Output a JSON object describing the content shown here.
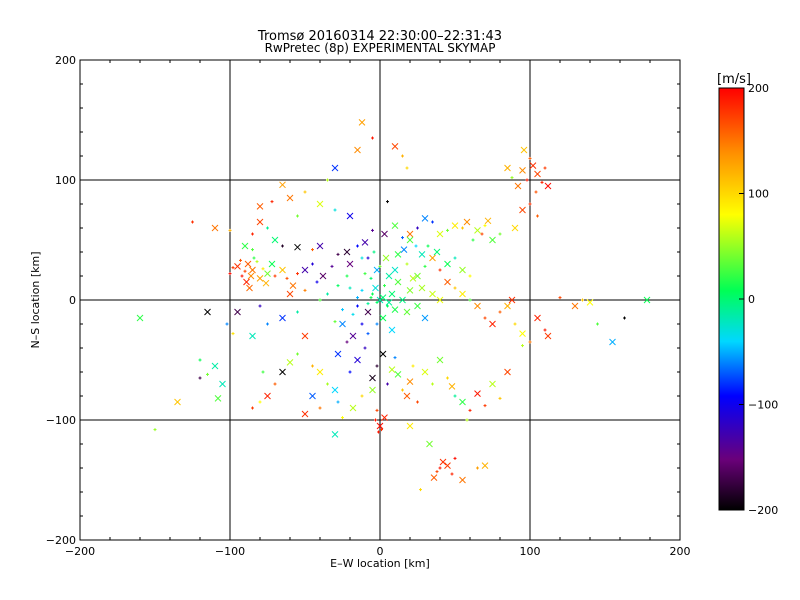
{
  "chart_data": {
    "type": "scatter",
    "title": "Tromsø 20160314 22:30:00–22:31:43",
    "subtitle": "RwPretec (8p) EXPERIMENTAL SKYMAP",
    "xlabel": "E–W location [km]",
    "ylabel": "N–S location [km]",
    "xlim": [
      -200,
      200
    ],
    "ylim": [
      -200,
      200
    ],
    "xticks": [
      -200,
      -100,
      0,
      100,
      200
    ],
    "yticks": [
      -200,
      -100,
      0,
      100,
      200
    ],
    "grid": "lines at ±100 km and 0 on both axes",
    "colorbar": {
      "label": "[m/s]",
      "range": [
        -200,
        200
      ],
      "ticks": [
        200,
        100,
        0,
        -100,
        -200
      ],
      "colormap": [
        "#000000",
        "#6a007a",
        "#0000ff",
        "#00d8ff",
        "#00ff55",
        "#ffff00",
        "#ff8c00",
        "#ff0000"
      ]
    },
    "points": [
      [
        -95,
        28,
        180
      ],
      [
        -90,
        24,
        170
      ],
      [
        -88,
        30,
        160
      ],
      [
        -92,
        20,
        190
      ],
      [
        -85,
        25,
        150
      ],
      [
        -82,
        32,
        60
      ],
      [
        -86,
        20,
        140
      ],
      [
        -98,
        27,
        175
      ],
      [
        -80,
        18,
        130
      ],
      [
        -78,
        26,
        90
      ],
      [
        -75,
        22,
        40
      ],
      [
        -84,
        35,
        20
      ],
      [
        -89,
        15,
        185
      ],
      [
        -93,
        33,
        165
      ],
      [
        -87,
        10,
        155
      ],
      [
        -100,
        22,
        195
      ],
      [
        -72,
        30,
        10
      ],
      [
        -70,
        20,
        175
      ],
      [
        -76,
        14,
        120
      ],
      [
        -62,
        18,
        165
      ],
      [
        -58,
        12,
        150
      ],
      [
        -55,
        22,
        180
      ],
      [
        -65,
        25,
        110
      ],
      [
        -50,
        8,
        145
      ],
      [
        -60,
        5,
        170
      ],
      [
        -85,
        55,
        185
      ],
      [
        -80,
        65,
        170
      ],
      [
        -75,
        60,
        -10
      ],
      [
        -90,
        45,
        20
      ],
      [
        -85,
        42,
        30
      ],
      [
        -70,
        50,
        0
      ],
      [
        -65,
        45,
        -185
      ],
      [
        -55,
        44,
        -200
      ],
      [
        -45,
        42,
        160
      ],
      [
        -40,
        45,
        -130
      ],
      [
        -80,
        -5,
        -120
      ],
      [
        -95,
        -10,
        -170
      ],
      [
        -102,
        -20,
        -60
      ],
      [
        -115,
        -10,
        -200
      ],
      [
        -98,
        -28,
        95
      ],
      [
        -85,
        -30,
        -20
      ],
      [
        -75,
        -20,
        -60
      ],
      [
        -65,
        -15,
        -80
      ],
      [
        -55,
        -10,
        -15
      ],
      [
        -50,
        -30,
        175
      ],
      [
        -55,
        -45,
        40
      ],
      [
        -60,
        -52,
        60
      ],
      [
        -45,
        -55,
        120
      ],
      [
        -40,
        -60,
        90
      ],
      [
        -35,
        -70,
        55
      ],
      [
        -30,
        -75,
        -40
      ],
      [
        -28,
        -85,
        -50
      ],
      [
        -45,
        -80,
        -70
      ],
      [
        -40,
        -90,
        150
      ],
      [
        -50,
        -95,
        180
      ],
      [
        -70,
        -70,
        160
      ],
      [
        -75,
        -80,
        185
      ],
      [
        -85,
        -90,
        175
      ],
      [
        -65,
        -60,
        -200
      ],
      [
        -78,
        -60,
        25
      ],
      [
        -110,
        -55,
        -15
      ],
      [
        -115,
        -62,
        40
      ],
      [
        -105,
        -70,
        -20
      ],
      [
        -120,
        -50,
        10
      ],
      [
        -135,
        -85,
        110
      ],
      [
        -150,
        -108,
        50
      ],
      [
        -160,
        -15,
        20
      ],
      [
        -120,
        -65,
        -170
      ],
      [
        -108,
        -82,
        30
      ],
      [
        -80,
        -85,
        80
      ],
      [
        -30,
        -112,
        -20
      ],
      [
        -25,
        -98,
        80
      ],
      [
        -18,
        -90,
        60
      ],
      [
        -12,
        -80,
        100
      ],
      [
        -5,
        -75,
        50
      ],
      [
        -20,
        -60,
        -90
      ],
      [
        -15,
        -50,
        -110
      ],
      [
        -10,
        -40,
        -120
      ],
      [
        -18,
        -30,
        -140
      ],
      [
        -12,
        -20,
        -100
      ],
      [
        -8,
        -10,
        -170
      ],
      [
        -15,
        -5,
        -90
      ],
      [
        -25,
        -20,
        -60
      ],
      [
        -22,
        -35,
        -150
      ],
      [
        -28,
        -45,
        -80
      ],
      [
        -3,
        -100,
        190
      ],
      [
        0,
        -105,
        195
      ],
      [
        -2,
        -92,
        170
      ],
      [
        3,
        -98,
        185
      ],
      [
        1,
        -108,
        180
      ],
      [
        -5,
        -65,
        -190
      ],
      [
        -2,
        -55,
        -180
      ],
      [
        2,
        -45,
        -200
      ],
      [
        5,
        -70,
        -130
      ],
      [
        8,
        -58,
        60
      ],
      [
        10,
        -48,
        -60
      ],
      [
        12,
        -62,
        30
      ],
      [
        15,
        -75,
        110
      ],
      [
        18,
        -80,
        160
      ],
      [
        22,
        -55,
        90
      ],
      [
        20,
        -68,
        140
      ],
      [
        25,
        -85,
        170
      ],
      [
        30,
        -60,
        70
      ],
      [
        35,
        -70,
        60
      ],
      [
        40,
        -50,
        40
      ],
      [
        45,
        -65,
        100
      ],
      [
        48,
        -72,
        120
      ],
      [
        50,
        -80,
        -10
      ],
      [
        55,
        -85,
        20
      ],
      [
        60,
        -92,
        185
      ],
      [
        65,
        -78,
        190
      ],
      [
        70,
        -88,
        175
      ],
      [
        75,
        -70,
        60
      ],
      [
        80,
        -82,
        110
      ],
      [
        85,
        -60,
        170
      ],
      [
        40,
        -140,
        190
      ],
      [
        42,
        -135,
        180
      ],
      [
        38,
        -143,
        170
      ],
      [
        45,
        -138,
        175
      ],
      [
        48,
        -145,
        185
      ],
      [
        36,
        -148,
        160
      ],
      [
        50,
        -132,
        195
      ],
      [
        55,
        -150,
        150
      ],
      [
        65,
        -140,
        130
      ],
      [
        70,
        -138,
        120
      ],
      [
        27,
        -158,
        100
      ],
      [
        33,
        -120,
        40
      ],
      [
        -1,
        -110,
        190
      ],
      [
        20,
        -105,
        90
      ],
      [
        58,
        -100,
        60
      ],
      [
        95,
        108,
        140
      ],
      [
        100,
        118,
        160
      ],
      [
        102,
        112,
        180
      ],
      [
        98,
        100,
        190
      ],
      [
        105,
        105,
        170
      ],
      [
        108,
        98,
        185
      ],
      [
        96,
        125,
        110
      ],
      [
        110,
        110,
        175
      ],
      [
        92,
        95,
        150
      ],
      [
        104,
        90,
        165
      ],
      [
        112,
        95,
        195
      ],
      [
        100,
        80,
        180
      ],
      [
        95,
        75,
        170
      ],
      [
        105,
        70,
        160
      ],
      [
        85,
        110,
        120
      ],
      [
        88,
        102,
        50
      ],
      [
        90,
        60,
        100
      ],
      [
        80,
        55,
        40
      ],
      [
        75,
        50,
        30
      ],
      [
        70,
        62,
        80
      ],
      [
        65,
        58,
        60
      ],
      [
        68,
        55,
        170
      ],
      [
        72,
        66,
        120
      ],
      [
        62,
        50,
        20
      ],
      [
        58,
        65,
        140
      ],
      [
        55,
        60,
        110
      ],
      [
        50,
        62,
        90
      ],
      [
        45,
        58,
        40
      ],
      [
        40,
        55,
        70
      ],
      [
        35,
        65,
        -80
      ],
      [
        30,
        68,
        -60
      ],
      [
        25,
        60,
        -120
      ],
      [
        20,
        55,
        150
      ],
      [
        15,
        52,
        -70
      ],
      [
        10,
        62,
        30
      ],
      [
        5,
        82,
        -200
      ],
      [
        3,
        55,
        -160
      ],
      [
        -5,
        58,
        -140
      ],
      [
        -10,
        48,
        -130
      ],
      [
        -15,
        45,
        -90
      ],
      [
        -22,
        40,
        -180
      ],
      [
        -28,
        38,
        -170
      ],
      [
        -20,
        30,
        -150
      ],
      [
        -8,
        35,
        -110
      ],
      [
        -2,
        25,
        -50
      ],
      [
        18,
        30,
        60
      ],
      [
        25,
        20,
        40
      ],
      [
        30,
        28,
        20
      ],
      [
        35,
        35,
        130
      ],
      [
        40,
        25,
        180
      ],
      [
        45,
        15,
        160
      ],
      [
        50,
        10,
        110
      ],
      [
        55,
        5,
        90
      ],
      [
        60,
        0,
        30
      ],
      [
        65,
        -5,
        140
      ],
      [
        70,
        -15,
        170
      ],
      [
        75,
        -20,
        185
      ],
      [
        80,
        -10,
        160
      ],
      [
        85,
        -5,
        120
      ],
      [
        90,
        -20,
        100
      ],
      [
        95,
        -28,
        80
      ],
      [
        100,
        -35,
        150
      ],
      [
        105,
        -15,
        185
      ],
      [
        110,
        -25,
        190
      ],
      [
        112,
        -30,
        175
      ],
      [
        95,
        -38,
        60
      ],
      [
        88,
        0,
        180
      ],
      [
        120,
        2,
        170
      ],
      [
        130,
        -5,
        150
      ],
      [
        135,
        0,
        110
      ],
      [
        140,
        -2,
        80
      ],
      [
        145,
        -20,
        30
      ],
      [
        155,
        -35,
        -50
      ],
      [
        163,
        -15,
        -200
      ],
      [
        178,
        0,
        10
      ],
      [
        -125,
        65,
        180
      ],
      [
        -110,
        60,
        150
      ],
      [
        -100,
        58,
        120
      ],
      [
        -65,
        96,
        130
      ],
      [
        -72,
        82,
        185
      ],
      [
        -60,
        85,
        150
      ],
      [
        -50,
        90,
        110
      ],
      [
        -40,
        80,
        70
      ],
      [
        -30,
        75,
        -30
      ],
      [
        -20,
        70,
        -100
      ],
      [
        -35,
        100,
        60
      ],
      [
        -15,
        125,
        140
      ],
      [
        -5,
        135,
        190
      ],
      [
        10,
        128,
        170
      ],
      [
        15,
        120,
        120
      ],
      [
        -12,
        148,
        130
      ],
      [
        18,
        110,
        100
      ],
      [
        -30,
        110,
        -80
      ],
      [
        -55,
        70,
        40
      ],
      [
        -80,
        78,
        160
      ],
      [
        -5,
        5,
        10
      ],
      [
        0,
        0,
        -20
      ],
      [
        5,
        -5,
        5
      ],
      [
        -3,
        10,
        -30
      ],
      [
        3,
        12,
        20
      ],
      [
        8,
        5,
        0
      ],
      [
        -8,
        -3,
        -10
      ],
      [
        10,
        -8,
        15
      ],
      [
        -12,
        8,
        -40
      ],
      [
        12,
        15,
        30
      ],
      [
        -6,
        18,
        0
      ],
      [
        6,
        20,
        -15
      ],
      [
        -10,
        22,
        25
      ],
      [
        10,
        25,
        -25
      ],
      [
        0,
        28,
        40
      ],
      [
        15,
        0,
        -5
      ],
      [
        -15,
        2,
        -50
      ],
      [
        18,
        -10,
        35
      ],
      [
        -18,
        -12,
        -35
      ],
      [
        2,
        -15,
        10
      ],
      [
        -2,
        -20,
        -60
      ],
      [
        8,
        -25,
        -40
      ],
      [
        -8,
        -28,
        -70
      ],
      [
        20,
        8,
        45
      ],
      [
        -20,
        10,
        -20
      ],
      [
        4,
        35,
        50
      ],
      [
        -4,
        40,
        -5
      ],
      [
        12,
        38,
        20
      ],
      [
        -12,
        35,
        -30
      ],
      [
        22,
        18,
        60
      ],
      [
        -22,
        20,
        15
      ],
      [
        25,
        -5,
        25
      ],
      [
        -25,
        -8,
        -45
      ],
      [
        28,
        10,
        55
      ],
      [
        -28,
        12,
        5
      ],
      [
        30,
        -15,
        -55
      ],
      [
        -30,
        -18,
        35
      ],
      [
        35,
        5,
        65
      ],
      [
        -35,
        5,
        -15
      ],
      [
        40,
        0,
        75
      ],
      [
        -40,
        0,
        30
      ],
      [
        2,
        2,
        0
      ],
      [
        -2,
        -2,
        5
      ],
      [
        6,
        -2,
        -10
      ],
      [
        -6,
        2,
        12
      ],
      [
        45,
        30,
        10
      ],
      [
        50,
        35,
        -20
      ],
      [
        55,
        25,
        50
      ],
      [
        60,
        20,
        80
      ],
      [
        38,
        40,
        0
      ],
      [
        -45,
        30,
        -110
      ],
      [
        -50,
        25,
        -130
      ],
      [
        -42,
        15,
        -100
      ],
      [
        -38,
        20,
        -160
      ],
      [
        -32,
        28,
        -140
      ],
      [
        16,
        42,
        -60
      ],
      [
        24,
        45,
        -40
      ],
      [
        28,
        38,
        -20
      ],
      [
        32,
        45,
        10
      ],
      [
        20,
        50,
        30
      ]
    ]
  }
}
